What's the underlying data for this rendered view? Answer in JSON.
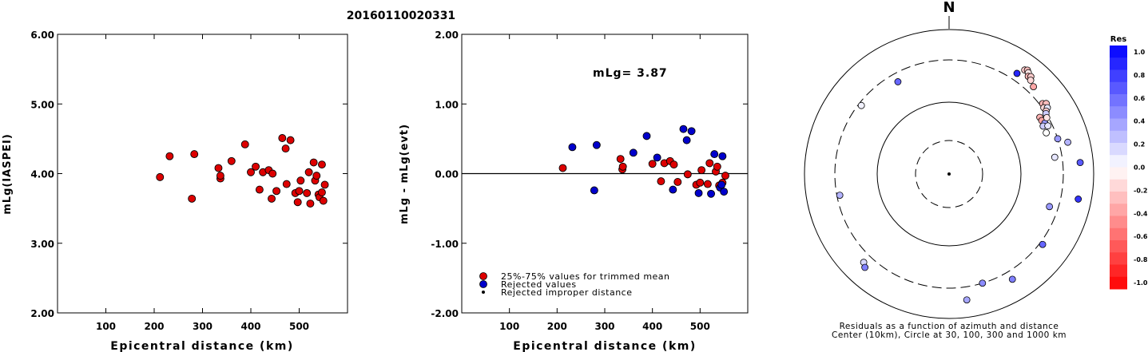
{
  "event_id": "20160110020331",
  "charts": [
    {
      "type": "scatter",
      "ylabel": "mLg(IASPEI)",
      "xlabel": "Epicentral distance (km)",
      "xlim": [
        0,
        600
      ],
      "ylim": [
        2.0,
        6.0
      ],
      "xticks": [
        100,
        200,
        300,
        400,
        500
      ],
      "yticks": [
        2.0,
        3.0,
        4.0,
        5.0,
        6.0
      ],
      "ytick_labels": [
        "2.00",
        "3.00",
        "4.00",
        "5.00",
        "6.00"
      ],
      "color": "#dd0000",
      "points": [
        [
          212,
          3.95
        ],
        [
          232,
          4.25
        ],
        [
          278,
          3.64
        ],
        [
          283,
          4.28
        ],
        [
          333,
          4.08
        ],
        [
          337,
          3.93
        ],
        [
          337,
          3.97
        ],
        [
          360,
          4.18
        ],
        [
          388,
          4.42
        ],
        [
          400,
          4.02
        ],
        [
          410,
          4.1
        ],
        [
          418,
          3.77
        ],
        [
          425,
          4.02
        ],
        [
          437,
          4.05
        ],
        [
          443,
          3.64
        ],
        [
          445,
          4.0
        ],
        [
          453,
          3.75
        ],
        [
          465,
          4.51
        ],
        [
          472,
          4.36
        ],
        [
          474,
          3.85
        ],
        [
          482,
          4.48
        ],
        [
          492,
          3.72
        ],
        [
          497,
          3.59
        ],
        [
          500,
          3.75
        ],
        [
          503,
          3.9
        ],
        [
          516,
          3.72
        ],
        [
          520,
          4.02
        ],
        [
          523,
          3.57
        ],
        [
          530,
          4.16
        ],
        [
          533,
          3.9
        ],
        [
          536,
          3.97
        ],
        [
          540,
          3.7
        ],
        [
          542,
          3.66
        ],
        [
          547,
          4.13
        ],
        [
          547,
          3.73
        ],
        [
          550,
          3.61
        ],
        [
          553,
          3.84
        ]
      ]
    },
    {
      "type": "scatter",
      "ylabel": "mLg - mLg(evt)",
      "xlabel": "Epicentral distance (km)",
      "xlim": [
        0,
        600
      ],
      "ylim": [
        -2.0,
        2.0
      ],
      "xticks": [
        100,
        200,
        300,
        400,
        500
      ],
      "yticks": [
        -2.0,
        -1.0,
        0.0,
        1.0,
        2.0
      ],
      "ytick_labels": [
        "-2.00",
        "-1.00",
        "0.00",
        "1.00",
        "2.00"
      ],
      "zero_line": true,
      "annotation": "mLg= 3.87",
      "legend_location": "lower-left",
      "legend": [
        {
          "label": "25%-75% values for trimmed mean",
          "color": "#dd0000",
          "marker": "circle"
        },
        {
          "label": "Rejected values",
          "color": "#0000cc",
          "marker": "circle"
        },
        {
          "label": "Rejected improper distance",
          "color": "#000000",
          "marker": "dot"
        }
      ],
      "series": [
        {
          "name": "25%-75% values for trimmed mean",
          "color": "#dd0000",
          "points": [
            [
              212,
              0.08
            ],
            [
              333,
              0.21
            ],
            [
              337,
              0.06
            ],
            [
              338,
              0.1
            ],
            [
              400,
              0.14
            ],
            [
              418,
              -0.11
            ],
            [
              425,
              0.15
            ],
            [
              437,
              0.18
            ],
            [
              445,
              0.13
            ],
            [
              453,
              -0.12
            ],
            [
              474,
              -0.01
            ],
            [
              492,
              -0.16
            ],
            [
              500,
              -0.13
            ],
            [
              503,
              0.05
            ],
            [
              516,
              -0.15
            ],
            [
              520,
              0.15
            ],
            [
              533,
              0.03
            ],
            [
              536,
              0.1
            ],
            [
              540,
              -0.17
            ],
            [
              547,
              -0.13
            ],
            [
              553,
              -0.03
            ]
          ]
        },
        {
          "name": "Rejected values",
          "color": "#0000cc",
          "points": [
            [
              232,
              0.38
            ],
            [
              278,
              -0.24
            ],
            [
              283,
              0.41
            ],
            [
              360,
              0.3
            ],
            [
              388,
              0.54
            ],
            [
              410,
              0.23
            ],
            [
              443,
              -0.23
            ],
            [
              465,
              0.64
            ],
            [
              472,
              0.48
            ],
            [
              482,
              0.61
            ],
            [
              497,
              -0.28
            ],
            [
              523,
              -0.29
            ],
            [
              530,
              0.28
            ],
            [
              542,
              -0.2
            ],
            [
              547,
              0.25
            ],
            [
              550,
              -0.26
            ],
            [
              545,
              -0.16
            ]
          ]
        }
      ]
    }
  ],
  "polar": {
    "north_label": "N",
    "caption_line1": "Residuals as a function of azimuth and distance",
    "caption_line2": "Center (10km), Circle at 30, 100, 300 and 1000 km",
    "points": [
      {
        "az": 36,
        "d": 0.89,
        "res": -0.2
      },
      {
        "az": 37,
        "d": 0.9,
        "res": -0.25
      },
      {
        "az": 38,
        "d": 0.89,
        "res": -0.1
      },
      {
        "az": 39,
        "d": 0.87,
        "res": -0.3
      },
      {
        "az": 40,
        "d": 0.88,
        "res": -0.2
      },
      {
        "az": 41,
        "d": 0.86,
        "res": -0.15
      },
      {
        "az": 34,
        "d": 0.84,
        "res": 0.85
      },
      {
        "az": 44,
        "d": 0.84,
        "res": -0.35
      },
      {
        "az": 53,
        "d": 0.81,
        "res": -0.3
      },
      {
        "az": 54,
        "d": 0.83,
        "res": -0.25
      },
      {
        "az": 55,
        "d": 0.8,
        "res": -0.15
      },
      {
        "az": 56,
        "d": 0.82,
        "res": 0.1
      },
      {
        "az": 57,
        "d": 0.8,
        "res": -0.2
      },
      {
        "az": 58,
        "d": 0.79,
        "res": 0.2
      },
      {
        "az": 58,
        "d": 0.74,
        "res": -0.3
      },
      {
        "az": 60,
        "d": 0.74,
        "res": -0.35
      },
      {
        "az": 62,
        "d": 0.75,
        "res": 0.4
      },
      {
        "az": 63,
        "d": 0.73,
        "res": 0.2
      },
      {
        "az": 60,
        "d": 0.78,
        "res": -0.1
      },
      {
        "az": 64,
        "d": 0.76,
        "res": 0.1
      },
      {
        "az": 67,
        "d": 0.73,
        "res": 0.0
      },
      {
        "az": -29,
        "d": 0.73,
        "res": 0.6
      },
      {
        "az": -52,
        "d": 0.77,
        "res": 0.05
      },
      {
        "az": 72,
        "d": 0.79,
        "res": 0.4
      },
      {
        "az": 75,
        "d": 0.85,
        "res": 0.3
      },
      {
        "az": 81,
        "d": 0.74,
        "res": 0.1
      },
      {
        "az": 85,
        "d": 0.91,
        "res": 0.65
      },
      {
        "az": 101,
        "d": 0.91,
        "res": 0.8
      },
      {
        "az": 108,
        "d": 0.73,
        "res": 0.4
      },
      {
        "az": 127,
        "d": 0.81,
        "res": 0.6
      },
      {
        "az": 149,
        "d": 0.85,
        "res": 0.5
      },
      {
        "az": 163,
        "d": 0.79,
        "res": 0.45
      },
      {
        "az": 172,
        "d": 0.88,
        "res": 0.35
      },
      {
        "az": 224,
        "d": 0.85,
        "res": 0.15
      },
      {
        "az": 222,
        "d": 0.87,
        "res": 0.5
      },
      {
        "az": 259,
        "d": 0.77,
        "res": 0.3
      }
    ]
  },
  "colorbar": {
    "title": "Res",
    "ticks": [
      "1.0",
      "0.8",
      "0.6",
      "0.4",
      "0.2",
      "0.0",
      "-0.2",
      "-0.4",
      "-0.6",
      "-0.8",
      "-1.0"
    ]
  }
}
